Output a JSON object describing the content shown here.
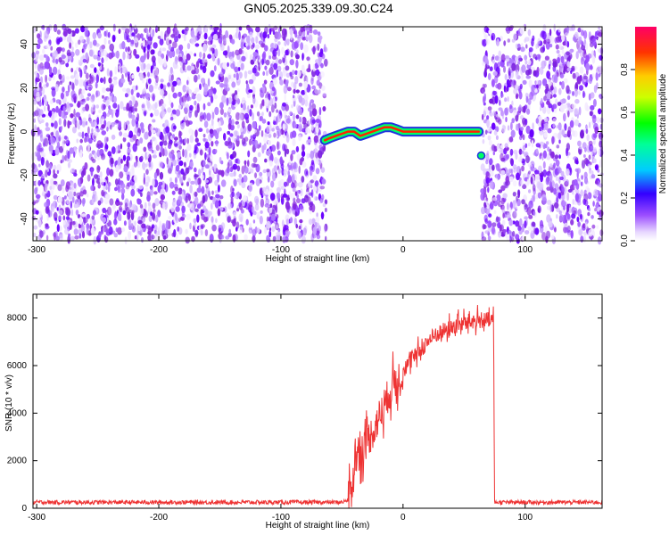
{
  "title": "GN05.2025.339.09.30.C24",
  "chart_data": [
    {
      "type": "heatmap",
      "xlabel": "Height of straight line (km)",
      "ylabel": "Frequency (Hz)",
      "xlim": [
        -303,
        163
      ],
      "ylim": [
        -50,
        48
      ],
      "x_ticks": [
        -300,
        -200,
        -100,
        0,
        100
      ],
      "y_ticks": [
        -40,
        -20,
        0,
        20,
        40
      ],
      "noise_regions_km": [
        [
          -303,
          -63
        ],
        [
          65,
          163
        ]
      ],
      "empty_region_km": [
        -63,
        65
      ],
      "ridge": {
        "x": [
          -64,
          -60,
          -55,
          -50,
          -45,
          -40,
          -35,
          -30,
          -25,
          -20,
          -15,
          -10,
          -5,
          0,
          10,
          20,
          30,
          40,
          50,
          62
        ],
        "y": [
          -4,
          -3,
          -2,
          -1,
          0,
          0,
          -2,
          -1,
          0,
          1,
          2,
          2,
          1,
          0,
          0,
          0,
          0,
          0,
          0,
          0
        ]
      },
      "isolated_points": [
        {
          "x": 64,
          "y": -11
        }
      ],
      "colorbar": {
        "label": "Normalized spectral amplitude",
        "range": [
          0,
          1
        ],
        "ticks": [
          "0.0",
          "0.2",
          "0.4",
          "0.6",
          "0.8"
        ]
      }
    },
    {
      "type": "line",
      "xlabel": "Height of straight line (km)",
      "ylabel": "SNR (10 * v/v)",
      "xlim": [
        -303,
        163
      ],
      "ylim": [
        0,
        9000
      ],
      "x_ticks": [
        -300,
        -200,
        -100,
        0,
        100
      ],
      "y_ticks": [
        0,
        2000,
        4000,
        6000,
        8000
      ],
      "color": "#ee3333",
      "series_keypoints": {
        "x": [
          -303,
          -50,
          -45,
          -42,
          -40,
          -35,
          -30,
          -25,
          -20,
          -15,
          -10,
          0,
          10,
          20,
          30,
          40,
          50,
          60,
          70,
          74,
          75,
          163
        ],
        "y": [
          250,
          250,
          350,
          800,
          2000,
          2400,
          2800,
          3200,
          3800,
          4400,
          5000,
          5800,
          6400,
          7000,
          7400,
          7600,
          7800,
          7900,
          7900,
          7900,
          250,
          250
        ]
      }
    }
  ]
}
